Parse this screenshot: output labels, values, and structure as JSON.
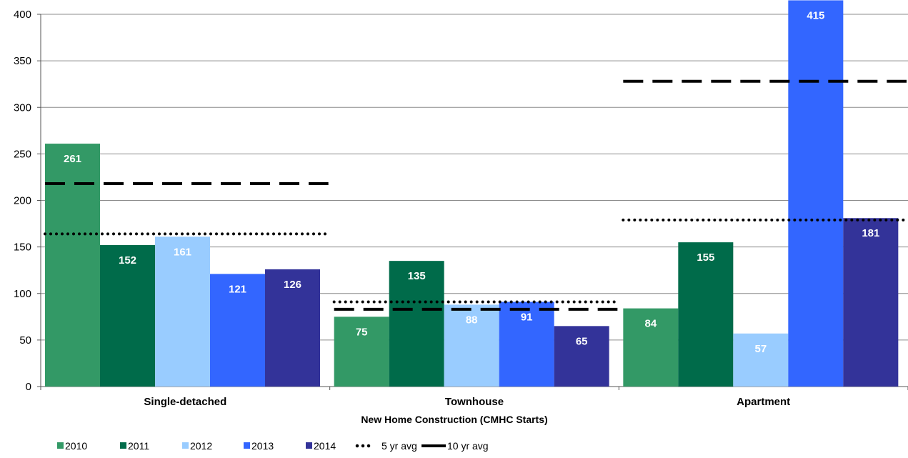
{
  "chart_data": {
    "type": "bar",
    "title": "",
    "xlabel": "New Home Construction (CMHC Starts)",
    "ylabel": "",
    "ylim": [
      0,
      400
    ],
    "yticks": [
      0,
      50,
      100,
      150,
      200,
      250,
      300,
      350,
      400
    ],
    "grid": true,
    "legend_position": "bottom-left",
    "categories": [
      "Single-detached",
      "Townhouse",
      "Apartment"
    ],
    "series": [
      {
        "name": "2010",
        "color": "#339966",
        "values": [
          261,
          75,
          84
        ]
      },
      {
        "name": "2011",
        "color": "#006B4A",
        "values": [
          152,
          135,
          155
        ]
      },
      {
        "name": "2012",
        "color": "#99CCFF",
        "values": [
          161,
          88,
          57
        ]
      },
      {
        "name": "2013",
        "color": "#3366FF",
        "values": [
          121,
          91,
          415
        ]
      },
      {
        "name": "2014",
        "color": "#333399",
        "values": [
          126,
          65,
          181
        ]
      }
    ],
    "reference_lines": [
      {
        "name": "5 yr avg",
        "style": "dotted",
        "color": "#000000",
        "values": [
          164,
          91,
          179
        ]
      },
      {
        "name": "10 yr avg",
        "style": "dashed",
        "color": "#000000",
        "values": [
          218,
          83,
          328
        ]
      }
    ],
    "legend_items": [
      {
        "label": "2010",
        "kind": "square",
        "color": "#339966"
      },
      {
        "label": "2011",
        "kind": "square",
        "color": "#006B4A"
      },
      {
        "label": "2012",
        "kind": "square",
        "color": "#99CCFF"
      },
      {
        "label": "2013",
        "kind": "square",
        "color": "#3366FF"
      },
      {
        "label": "2014",
        "kind": "square",
        "color": "#333399"
      },
      {
        "label": "5 yr avg",
        "kind": "dots",
        "color": "#000000"
      },
      {
        "label": "10 yr avg",
        "kind": "line",
        "color": "#000000"
      }
    ]
  }
}
